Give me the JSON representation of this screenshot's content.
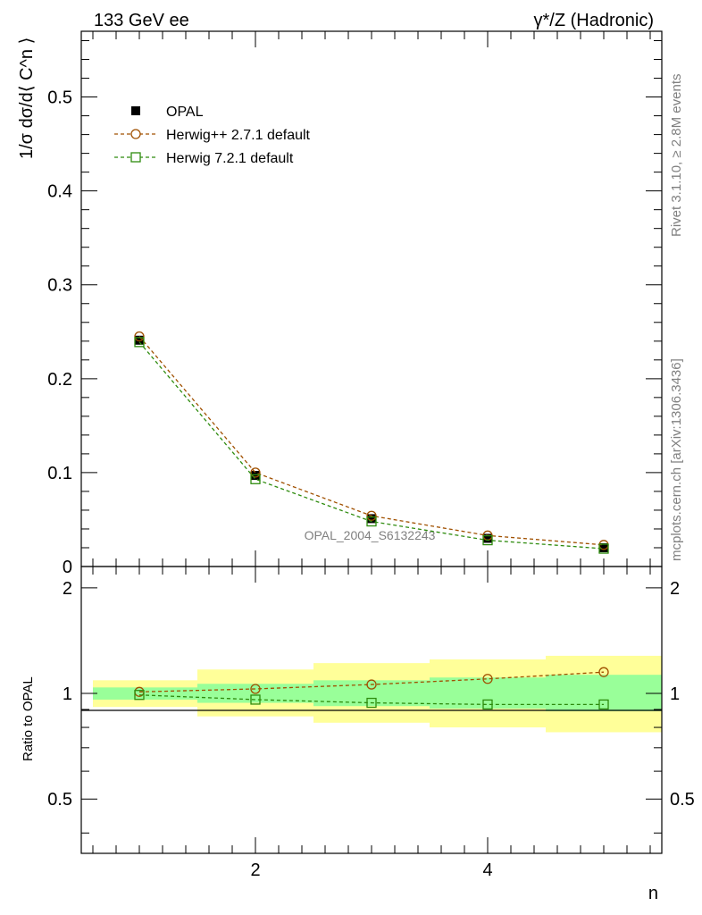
{
  "header": {
    "left": "133 GeV ee",
    "right": "γ*/Z (Hadronic)"
  },
  "side": {
    "top": "Rivet 3.1.10, ≥ 2.8M events",
    "bottom": "mcplots.cern.ch [arXiv:1306.3436]"
  },
  "watermark": "OPAL_2004_S6132243",
  "colors": {
    "data": "#000000",
    "herwigpp": "#a05000",
    "herwig7": "#2e8b0e",
    "band_inner": "#99ff99",
    "band_outer": "#ffff99"
  },
  "chart_data": [
    {
      "type": "line",
      "title": "",
      "ylabel": "1/σ dσ/d⟨ C^n ⟩",
      "xlabel": "",
      "xlim": [
        0.5,
        5.5
      ],
      "ylim": [
        0,
        0.57
      ],
      "yticks": [
        0,
        0.1,
        0.2,
        0.3,
        0.4,
        0.5
      ],
      "ytick_labels": [
        "0",
        "0.1",
        "0.2",
        "0.3",
        "0.4",
        "0.5"
      ],
      "legend_position": "top-left",
      "x": [
        1,
        2,
        3,
        4,
        5
      ],
      "series": [
        {
          "name": "OPAL",
          "marker": "filled-square",
          "values": [
            0.241,
            0.097,
            0.051,
            0.03,
            0.02
          ]
        },
        {
          "name": "Herwig++ 2.7.1 default",
          "marker": "open-circle",
          "line": "dashed",
          "values": [
            0.245,
            0.1,
            0.054,
            0.033,
            0.023
          ]
        },
        {
          "name": "Herwig 7.2.1 default",
          "marker": "open-square",
          "line": "dashed",
          "values": [
            0.239,
            0.093,
            0.048,
            0.028,
            0.019
          ]
        }
      ]
    },
    {
      "type": "line",
      "title": "",
      "ylabel": "Ratio to OPAL",
      "xlabel": "n",
      "xlim": [
        0.5,
        5.5
      ],
      "ylim": [
        0.35,
        2.3
      ],
      "yticks": [
        0.5,
        1,
        2
      ],
      "ytick_labels": [
        "0.5",
        "1",
        "2"
      ],
      "xticks": [
        2,
        4
      ],
      "xtick_labels": [
        "2",
        "4"
      ],
      "log_y": true,
      "bands": {
        "x_edges": [
          0.6,
          1.5,
          2.5,
          3.5,
          4.5,
          5.5
        ],
        "inner_low": [
          0.96,
          0.94,
          0.92,
          0.905,
          0.89
        ],
        "inner_high": [
          1.04,
          1.065,
          1.09,
          1.11,
          1.13
        ],
        "outer_low": [
          0.915,
          0.86,
          0.825,
          0.8,
          0.775
        ],
        "outer_high": [
          1.09,
          1.17,
          1.22,
          1.25,
          1.28
        ]
      },
      "x": [
        1,
        2,
        3,
        4,
        5
      ],
      "series": [
        {
          "name": "Herwig++ 2.7.1 default",
          "marker": "open-circle",
          "line": "dashed",
          "values": [
            1.01,
            1.03,
            1.06,
            1.1,
            1.15
          ]
        },
        {
          "name": "Herwig 7.2.1 default",
          "marker": "open-square",
          "line": "dashed",
          "values": [
            0.99,
            0.96,
            0.94,
            0.93,
            0.93
          ]
        }
      ]
    }
  ]
}
